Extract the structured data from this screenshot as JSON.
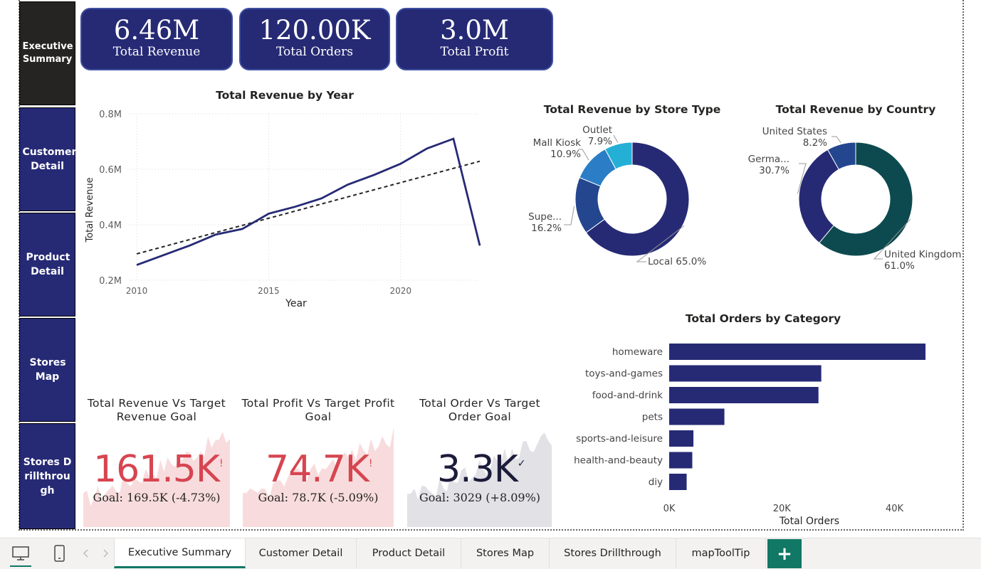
{
  "nav": {
    "items": [
      {
        "label": "Executive Summary"
      },
      {
        "label": "Customer Detail"
      },
      {
        "label": "Product Detail"
      },
      {
        "label": "Stores Map"
      },
      {
        "label": "Stores Drillthrou gh"
      }
    ]
  },
  "kpis": [
    {
      "value": "6.46M",
      "label": "Total Revenue"
    },
    {
      "value": "120.00K",
      "label": "Total Orders"
    },
    {
      "value": "3.0M",
      "label": "Total Profit"
    }
  ],
  "colors": {
    "navy": "#262a75",
    "accent_teal": "#117865",
    "red": "#d64550",
    "dark_teal": "#0d4a4f",
    "mid_blue": "#24468f",
    "light_blue": "#2b7ec5",
    "cyan": "#24b0d6"
  },
  "chart_data": [
    {
      "type": "line",
      "title": "Total Revenue by Year",
      "xlabel": "Year",
      "ylabel": "Total Revenue",
      "x": [
        2010,
        2011,
        2012,
        2013,
        2014,
        2015,
        2016,
        2017,
        2018,
        2019,
        2020,
        2021,
        2022,
        2023
      ],
      "series": [
        {
          "values": [
            0.255,
            0.29,
            0.325,
            0.365,
            0.385,
            0.44,
            0.465,
            0.495,
            0.545,
            0.58,
            0.62,
            0.675,
            0.71,
            0.325
          ]
        },
        {
          "values": [
            0.295,
            0.32,
            0.346,
            0.372,
            0.397,
            0.423,
            0.449,
            0.475,
            0.5,
            0.526,
            0.552,
            0.578,
            0.603,
            0.629
          ],
          "style": "dashed"
        }
      ],
      "xticks": [
        "2010",
        "2015",
        "2020"
      ],
      "yticks": [
        "0.2M",
        "0.4M",
        "0.6M",
        "0.8M"
      ],
      "ylim": [
        0.2,
        0.8
      ],
      "xlim": [
        2010,
        2023
      ],
      "grid": true
    },
    {
      "type": "pie",
      "title": "Total Revenue by Store Type",
      "slices": [
        {
          "label": "Local",
          "pct": "65.0%",
          "value": 65.0,
          "color": "#262a75"
        },
        {
          "label": "Supe...",
          "pct": "16.2%",
          "value": 16.2,
          "color": "#24468f"
        },
        {
          "label": "Mall Kiosk",
          "pct": "10.9%",
          "value": 10.9,
          "color": "#2b7ec5"
        },
        {
          "label": "Outlet",
          "pct": "7.9%",
          "value": 7.9,
          "color": "#24b0d6"
        }
      ]
    },
    {
      "type": "pie",
      "title": "Total Revenue by Country",
      "slices": [
        {
          "label": "United Kingdom",
          "pct": "61.0%",
          "value": 61.0,
          "color": "#0d4a4f"
        },
        {
          "label": "Germa...",
          "pct": "30.7%",
          "value": 30.7,
          "color": "#262a75"
        },
        {
          "label": "United States",
          "pct": "8.2%",
          "value": 8.2,
          "color": "#24468f"
        }
      ]
    },
    {
      "type": "bar",
      "orientation": "horizontal",
      "title": "Total Orders by Category",
      "xlabel": "Total Orders",
      "categories": [
        "homeware",
        "toys-and-games",
        "food-and-drink",
        "pets",
        "sports-and-leisure",
        "health-and-beauty",
        "diy"
      ],
      "values": [
        45500,
        27000,
        26500,
        9800,
        4300,
        4100,
        3100
      ],
      "xticks": [
        "0K",
        "20K",
        "40K"
      ],
      "xlim": [
        0,
        46000
      ]
    }
  ],
  "gauges": [
    {
      "title_line1": "Total Revenue Vs Target",
      "title_line2": "Revenue Goal",
      "value": "161.5K",
      "flag": "!",
      "goal": "Goal: 169.5K (-4.73%)"
    },
    {
      "title_line1": "Total Profit Vs Target Profit",
      "title_line2": "Goal",
      "value": "74.7K",
      "flag": "!",
      "goal": "Goal: 78.7K (-5.09%)"
    },
    {
      "title_line1": "Total Order Vs Target",
      "title_line2": "Order Goal",
      "value": "3.3K",
      "flag": "✓",
      "goal": "Goal: 3029 (+8.09%)"
    }
  ],
  "tabs": [
    {
      "label": "Executive Summary",
      "active": true
    },
    {
      "label": "Customer Detail"
    },
    {
      "label": "Product Detail"
    },
    {
      "label": "Stores Map"
    },
    {
      "label": "Stores Drillthrough"
    },
    {
      "label": "mapToolTip"
    }
  ],
  "add_tab_label": "+",
  "icons": [
    "desktop-view-icon",
    "mobile-view-icon",
    "chevron-left-icon",
    "chevron-right-icon"
  ]
}
